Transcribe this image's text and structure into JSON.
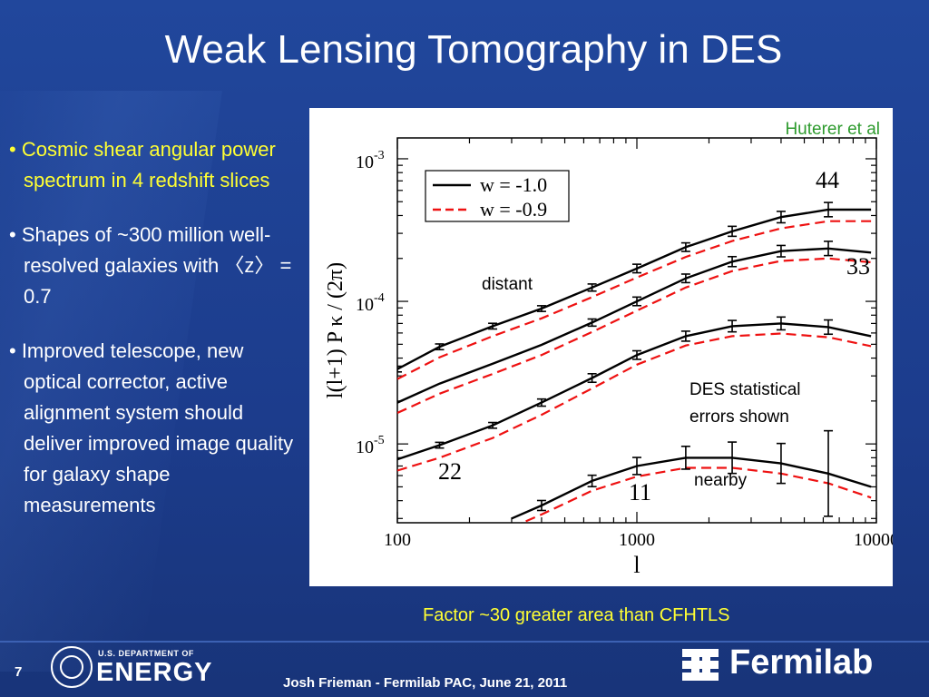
{
  "slide": {
    "title": "Weak Lensing Tomography in DES",
    "bullets": [
      "• Cosmic shear angular power spectrum in 4 redshift slices",
      "• Shapes of ~300 million well-resolved galaxies with 〈z〉 = 0.7",
      "• Improved telescope, new optical corrector, active alignment system should deliver improved image quality for galaxy shape measurements"
    ],
    "caption": "Factor ~30 greater area than CFHTLS",
    "page_number": "7",
    "footer": "Josh Frieman  -  Fermilab PAC, June 21, 2011",
    "logos": {
      "doe_small": "U.S. DEPARTMENT OF",
      "doe_big": "ENERGY",
      "fermilab": "Fermilab"
    },
    "colors": {
      "background": "#1d3f8f",
      "highlight": "#ffff33",
      "attribution": "#2e9b2e"
    }
  },
  "chart_data": {
    "type": "line",
    "xscale": "log",
    "yscale": "log",
    "xlim": [
      100,
      10000
    ],
    "ylim": [
      2.8e-06,
      0.0014
    ],
    "xlabel": "l",
    "ylabel": "l(l+1) P_κ / (2π)",
    "x_ticks": [
      "100",
      "1000",
      "10000"
    ],
    "y_ticks": [
      {
        "base": "10",
        "exp": "-3"
      },
      {
        "base": "10",
        "exp": "-4"
      },
      {
        "base": "10",
        "exp": "-5"
      }
    ],
    "legend": {
      "placement": "top-left",
      "entries": [
        {
          "label": "w = -1.0",
          "style": "solid",
          "color": "#000000"
        },
        {
          "label": "w = -0.9",
          "style": "dashed",
          "color": "#ee1111"
        }
      ]
    },
    "attribution": "Huterer et al",
    "annotations": [
      "distant",
      "DES statistical errors shown",
      "nearby"
    ],
    "curves": [
      {
        "label": "44",
        "x": [
          100,
          150,
          250,
          400,
          650,
          1000,
          1600,
          2500,
          4000,
          6300,
          9500
        ],
        "w_m1": [
          3.35e-05,
          4.8e-05,
          6.7e-05,
          8.9e-05,
          0.000125,
          0.00017,
          0.00024,
          0.00031,
          0.00039,
          0.00044,
          0.00044
        ],
        "w_m09": [
          2.85e-05,
          4.05e-05,
          5.7e-05,
          7.6e-05,
          0.000107,
          0.000147,
          0.000205,
          0.000265,
          0.000325,
          0.000365,
          0.000365
        ],
        "err": [
          0.02,
          0.02,
          0.02,
          0.02,
          0.025,
          0.03,
          0.03,
          0.035,
          0.04,
          0.05,
          0
        ]
      },
      {
        "label": "33",
        "x": [
          100,
          150,
          250,
          400,
          650,
          1000,
          1600,
          2500,
          4000,
          6300,
          9500
        ],
        "w_m1": [
          1.95e-05,
          2.65e-05,
          3.65e-05,
          4.95e-05,
          7.1e-05,
          0.0001,
          0.000145,
          0.00019,
          0.000225,
          0.000235,
          0.00022
        ],
        "w_m09": [
          1.65e-05,
          2.25e-05,
          3.1e-05,
          4.2e-05,
          6.1e-05,
          8.6e-05,
          0.000125,
          0.000163,
          0.000192,
          0.0002,
          0.000188
        ],
        "err": [
          0,
          0,
          0,
          0,
          0.025,
          0.03,
          0.03,
          0.035,
          0.04,
          0.05,
          0
        ]
      },
      {
        "label": "22",
        "x": [
          100,
          150,
          250,
          400,
          650,
          1000,
          1600,
          2500,
          4000,
          6300,
          9500
        ],
        "w_m1": [
          7.8e-06,
          9.8e-06,
          1.35e-05,
          1.95e-05,
          2.9e-05,
          4.2e-05,
          5.7e-05,
          6.7e-05,
          7e-05,
          6.6e-05,
          5.7e-05
        ],
        "w_m09": [
          6.5e-06,
          8e-06,
          1.1e-05,
          1.6e-05,
          2.45e-05,
          3.6e-05,
          4.9e-05,
          5.7e-05,
          5.95e-05,
          5.6e-05,
          4.85e-05
        ],
        "err": [
          0,
          0.02,
          0.02,
          0.025,
          0.03,
          0.03,
          0.035,
          0.04,
          0.045,
          0.05,
          0
        ]
      },
      {
        "label": "11",
        "x": [
          300,
          400,
          650,
          1000,
          1600,
          2500,
          4000,
          6300,
          9500
        ],
        "w_m1": [
          3e-06,
          3.7e-06,
          5.5e-06,
          7e-06,
          8e-06,
          8e-06,
          7.3e-06,
          6.2e-06,
          5e-06
        ],
        "w_m09": [
          2.6e-06,
          3.2e-06,
          4.7e-06,
          5.9e-06,
          6.8e-06,
          6.8e-06,
          6.2e-06,
          5.3e-06,
          4.2e-06
        ],
        "err": [
          0,
          0.035,
          0.04,
          0.06,
          0.08,
          0.11,
          0.14,
          0.3,
          0
        ]
      }
    ]
  }
}
